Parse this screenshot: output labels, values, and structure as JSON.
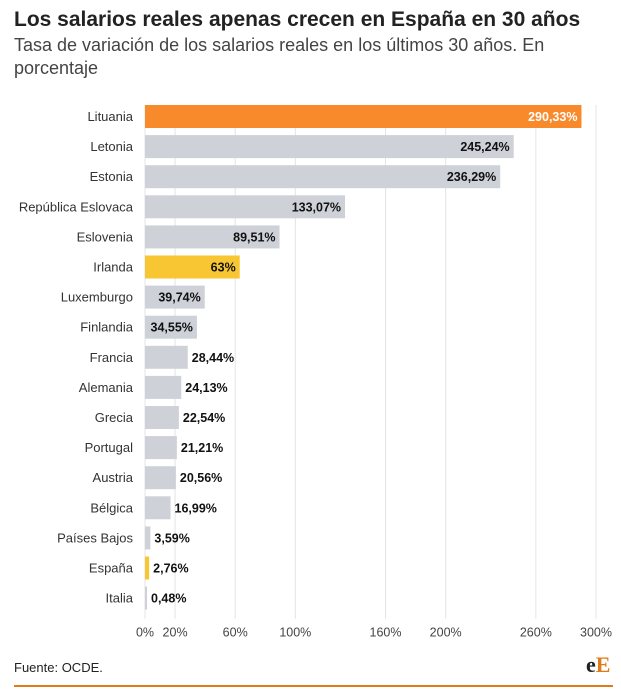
{
  "header": {
    "title": "Los salarios reales apenas crecen en España en 30 años",
    "subtitle": "Tasa de variación de los salarios reales en los últimos 30 años. En porcentaje"
  },
  "chart_data": {
    "type": "bar",
    "orientation": "horizontal",
    "categories": [
      "Lituania",
      "Letonia",
      "Estonia",
      "República Eslovaca",
      "Eslovenia",
      "Irlanda",
      "Luxemburgo",
      "Finlandia",
      "Francia",
      "Alemania",
      "Grecia",
      "Portugal",
      "Austria",
      "Bélgica",
      "Países Bajos",
      "España",
      "Italia"
    ],
    "values": [
      290.33,
      245.24,
      236.29,
      133.07,
      89.51,
      63,
      39.74,
      34.55,
      28.44,
      24.13,
      22.54,
      21.21,
      20.56,
      16.99,
      3.59,
      2.76,
      0.48
    ],
    "value_labels": [
      "290,33%",
      "245,24%",
      "236,29%",
      "133,07%",
      "89,51%",
      "63%",
      "39,74%",
      "34,55%",
      "28,44%",
      "24,13%",
      "22,54%",
      "21,21%",
      "20,56%",
      "16,99%",
      "3,59%",
      "2,76%",
      "0,48%"
    ],
    "highlight": {
      "Lituania": "#f98a2c",
      "Irlanda": "#f8c533",
      "España": "#f8c533"
    },
    "default_color": "#ced2d8",
    "xlim": [
      0,
      300
    ],
    "xticks": [
      0,
      20,
      60,
      100,
      160,
      200,
      260,
      300
    ],
    "xtick_labels": [
      "0%",
      "20%",
      "60%",
      "100%",
      "160%",
      "200%",
      "260%",
      "300%"
    ],
    "xlabel": "",
    "ylabel": ""
  },
  "footer": {
    "source": "Fuente: OCDE.",
    "logo_part1": "e",
    "logo_part2": "E"
  }
}
